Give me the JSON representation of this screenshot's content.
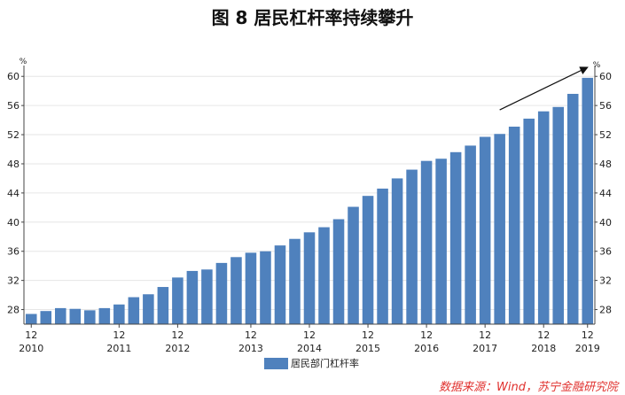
{
  "figure": {
    "title": "图 8 居民杠杆率持续攀升",
    "source": "数据来源：Wind，苏宁金融研究院"
  },
  "colors": {
    "bar": "#4f81bd",
    "axis": "#444444",
    "text": "#222222",
    "source": "#e0302d"
  },
  "chart_data": {
    "type": "bar",
    "y_unit_left": "%",
    "y_unit_right": "%",
    "ylim": [
      26,
      61
    ],
    "yticks": [
      28,
      32,
      36,
      40,
      44,
      48,
      52,
      56,
      60
    ],
    "grid": true,
    "legend_position": "bottom-center",
    "series": [
      {
        "name": "居民部门杠杆率",
        "values": [
          27.4,
          27.8,
          28.2,
          28.1,
          27.9,
          28.2,
          28.7,
          29.7,
          30.1,
          31.1,
          32.4,
          33.3,
          33.5,
          34.4,
          35.2,
          35.8,
          36.0,
          36.8,
          37.7,
          38.6,
          39.3,
          40.4,
          42.1,
          43.6,
          44.6,
          46.0,
          47.2,
          48.4,
          48.7,
          49.6,
          50.5,
          51.7,
          52.1,
          53.1,
          54.2,
          55.2,
          55.8,
          57.6,
          59.8
        ]
      }
    ],
    "x_tick_labels": [
      {
        "index": 0,
        "month": "12",
        "year": "2010"
      },
      {
        "index": 6,
        "month": "12",
        "year": "2011"
      },
      {
        "index": 10,
        "month": "12",
        "year": "2012"
      },
      {
        "index": 15,
        "month": "12",
        "year": "2013"
      },
      {
        "index": 19,
        "month": "12",
        "year": "2014"
      },
      {
        "index": 23,
        "month": "12",
        "year": "2015"
      },
      {
        "index": 27,
        "month": "12",
        "year": "2016"
      },
      {
        "index": 31,
        "month": "12",
        "year": "2017"
      },
      {
        "index": 35,
        "month": "12",
        "year": "2018"
      },
      {
        "index": 38,
        "month": "12",
        "year": "2019"
      }
    ],
    "annotation": {
      "type": "arrow",
      "description": "upward trend arrow"
    }
  }
}
